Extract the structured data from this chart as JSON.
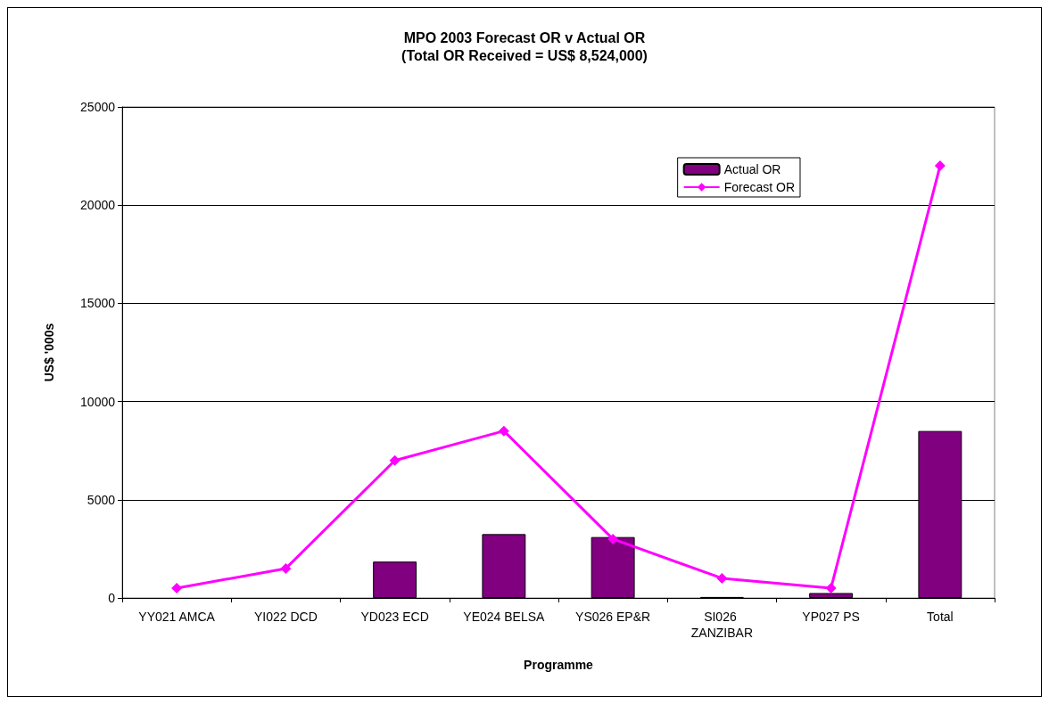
{
  "chart_data": {
    "type": "bar",
    "title": "MPO 2003 Forecast OR v Actual OR\n(Total OR Received = US$ 8,524,000)",
    "xlabel": "Programme",
    "ylabel": "US$ '000s",
    "categories": [
      "YY021 AMCA",
      "YI022 DCD",
      "YD023 ECD",
      "YE024 BELSA",
      "YS026 EP&R",
      "SI026 ZANZIBAR",
      "YP027 PS",
      "Total"
    ],
    "series": [
      {
        "name": "Actual OR",
        "color": "#800080",
        "values": [
          null,
          null,
          1850,
          3250,
          3100,
          50,
          250,
          8500
        ]
      },
      {
        "name": "Forecast OR",
        "type": "line",
        "color": "#ff00ff",
        "marker": "diamond",
        "values": [
          500,
          1500,
          7000,
          8500,
          3000,
          1000,
          500,
          22000
        ]
      }
    ],
    "ylim": [
      0,
      25000
    ],
    "yticks": [
      0,
      5000,
      10000,
      15000,
      20000,
      25000
    ],
    "grid": "y",
    "legend": "top right"
  }
}
